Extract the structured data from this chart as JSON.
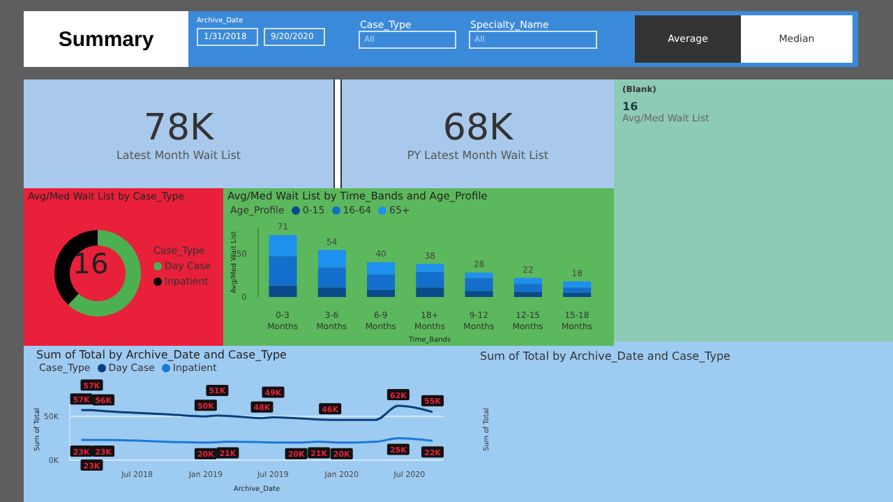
{
  "chart_data": [
    {
      "type": "other",
      "title": "Summary",
      "annotations": [
        "Archive_Date",
        "1/31/2018",
        "9/20/2020",
        "Case_Type",
        "All",
        "Specialty_Name",
        "All",
        "Average",
        "Median"
      ]
    },
    {
      "type": "other",
      "annotations": [
        "78K",
        "Latest Month Wait List"
      ]
    },
    {
      "type": "other",
      "annotations": [
        "68K",
        "PY Latest Month Wait List"
      ]
    },
    {
      "type": "other",
      "annotations": [
        "(Blank)",
        "16",
        "Avg/Med Wait List"
      ]
    },
    {
      "type": "donut",
      "title": "Avg/Med Wait List by Case_Type",
      "legend_title": "Case_Type",
      "legend": "right",
      "categories": [
        "Day Case",
        "Inpatient"
      ],
      "values": [
        62,
        38
      ],
      "colors": [
        "#4cb050",
        "#000000"
      ],
      "annotations": [
        "16"
      ]
    },
    {
      "type": "bar",
      "stacked": true,
      "title": "Avg/Med Wait List by Time_Bands and Age_Profile",
      "legend_title": "Age_Profile",
      "legend": "top left",
      "xlabel": "Time_Bands",
      "ylabel": "Avg/Med Wait List",
      "ylim": [
        0,
        80
      ],
      "yticks": [
        0,
        50
      ],
      "categories": [
        "0-3 Months",
        "3-6 Months",
        "6-9 Months",
        "18+ Months",
        "9-12 Months",
        "12-15 Months",
        "15-18 Months"
      ],
      "series": [
        {
          "name": "0-15",
          "color": "#0b4a8a",
          "values": [
            13,
            11,
            8,
            11,
            7,
            6,
            5
          ]
        },
        {
          "name": "16-64",
          "color": "#146fcc",
          "values": [
            34,
            23,
            18,
            18,
            15,
            9,
            6
          ]
        },
        {
          "name": "65+",
          "color": "#1e90ee",
          "values": [
            24,
            20,
            14,
            9,
            6,
            7,
            7
          ]
        }
      ],
      "totals": [
        "71",
        "54",
        "40",
        "38",
        "28",
        "22",
        "18"
      ]
    },
    {
      "type": "line",
      "title": "Sum of Total by Archive_Date and Case_Type",
      "legend_title": "Case_Type",
      "legend": "top left",
      "xlabel": "Archive_Date",
      "ylabel": "Sum of Total",
      "grid": "y",
      "xlim": [
        "2018-01",
        "2020-10"
      ],
      "xticks": [
        {
          "value": "2018-07",
          "label": "Jul 2018"
        },
        {
          "value": "2019-01",
          "label": "Jan 2019"
        },
        {
          "value": "2019-07",
          "label": "Jul 2019"
        },
        {
          "value": "2020-01",
          "label": "Jan 2020"
        },
        {
          "value": "2020-07",
          "label": "Jul 2020"
        }
      ],
      "ylim": [
        0,
        70000
      ],
      "yticks": [
        {
          "value": 0,
          "label": "0K"
        },
        {
          "value": 50000,
          "label": "50K"
        }
      ],
      "series": [
        {
          "name": "Day Case",
          "color": "#0b3f7a",
          "x": [
            "2018-02",
            "2018-03",
            "2018-04",
            "2018-10",
            "2019-01",
            "2019-02",
            "2019-06",
            "2019-07",
            "2019-12",
            "2020-04",
            "2020-06",
            "2020-09"
          ],
          "values": [
            57000,
            57000,
            56000,
            52000,
            50000,
            51000,
            48000,
            49000,
            46000,
            46000,
            62000,
            55000
          ],
          "value_labels": [
            "57K",
            "57K",
            "56K",
            null,
            "50K",
            "51K",
            "48K",
            "49K",
            "46K",
            null,
            "62K",
            "55K"
          ]
        },
        {
          "name": "Inpatient",
          "color": "#1a78d8",
          "x": [
            "2018-02",
            "2018-03",
            "2018-04",
            "2019-01",
            "2019-03",
            "2019-09",
            "2019-11",
            "2020-01",
            "2020-04",
            "2020-06",
            "2020-09"
          ],
          "values": [
            23000,
            23000,
            23000,
            20000,
            21000,
            20000,
            21000,
            20000,
            21000,
            25000,
            22000
          ],
          "value_labels": [
            "23K",
            "23K",
            "23K",
            "20K",
            "21K",
            "20K",
            "21K",
            "20K",
            null,
            "25K",
            "22K"
          ]
        }
      ]
    },
    {
      "type": "other",
      "title": "Sum of Total by Archive_Date and Case_Type",
      "ylabel": "Sum of Total"
    }
  ]
}
